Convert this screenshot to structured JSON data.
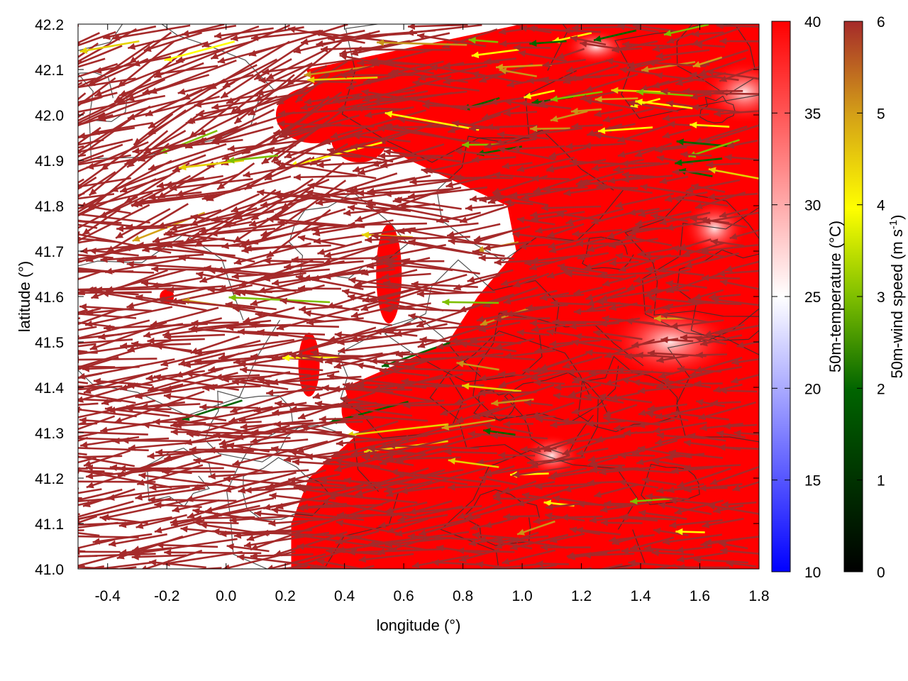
{
  "chart_data": {
    "type": "heatmap",
    "title": "",
    "xlabel": "longitude (°)",
    "ylabel": "latitude (°)",
    "xlim": [
      -0.5,
      1.8
    ],
    "ylim": [
      41.0,
      42.2
    ],
    "x_ticks": [
      "-0.4",
      "-0.2",
      "0.0",
      "0.2",
      "0.4",
      "0.6",
      "0.8",
      "1.0",
      "1.2",
      "1.4",
      "1.6",
      "1.8"
    ],
    "x_tick_values": [
      -0.4,
      -0.2,
      0.0,
      0.2,
      0.4,
      0.6,
      0.8,
      1.0,
      1.2,
      1.4,
      1.6,
      1.8
    ],
    "y_ticks": [
      "41.0",
      "41.1",
      "41.2",
      "41.3",
      "41.4",
      "41.5",
      "41.6",
      "41.7",
      "41.8",
      "41.9",
      "42.0",
      "42.1",
      "42.2"
    ],
    "y_tick_values": [
      41.0,
      41.1,
      41.2,
      41.3,
      41.4,
      41.5,
      41.6,
      41.7,
      41.8,
      41.9,
      42.0,
      42.1,
      42.2
    ],
    "color_field": {
      "name": "50m-temperature (°C)",
      "range": [
        10,
        40
      ],
      "ticks": [
        "10",
        "15",
        "20",
        "25",
        "30",
        "35",
        "40"
      ],
      "tick_values": [
        10,
        15,
        20,
        25,
        30,
        35,
        40
      ],
      "colormap": [
        "#0000ff",
        "#ffffff",
        "#ff0000"
      ],
      "hot_region_lon_boundary": [
        {
          "lat": 42.2,
          "lon": 1.0
        },
        {
          "lat": 42.1,
          "lon": 0.27
        },
        {
          "lat": 42.0,
          "lon": 0.35
        },
        {
          "lat": 41.9,
          "lon": 0.62
        },
        {
          "lat": 41.8,
          "lon": 0.95
        },
        {
          "lat": 41.7,
          "lon": 0.98
        },
        {
          "lat": 41.6,
          "lon": 0.85
        },
        {
          "lat": 41.5,
          "lon": 0.75
        },
        {
          "lat": 41.4,
          "lon": 0.4
        },
        {
          "lat": 41.3,
          "lon": 0.45
        },
        {
          "lat": 41.2,
          "lon": 0.28
        },
        {
          "lat": 41.1,
          "lon": 0.22
        },
        {
          "lat": 41.0,
          "lon": 0.22
        }
      ]
    },
    "vector_field": {
      "name": "50m-wind speed (m s-1)",
      "range": [
        0,
        6
      ],
      "ticks": [
        "0",
        "1",
        "2",
        "3",
        "4",
        "5",
        "6"
      ],
      "tick_values": [
        0,
        1,
        2,
        3,
        4,
        5,
        6
      ],
      "colormap": [
        "#000000",
        "#006400",
        "#7fbf00",
        "#ffff00",
        "#d4a017",
        "#a52a2a"
      ],
      "dominant_direction": "easterly (pointing west-northwest)",
      "dominant_speed": 6
    },
    "contours": {
      "color": "#333333",
      "description": "terrain elevation isolines"
    },
    "grid": false,
    "legend": "right (two colorbars)"
  }
}
